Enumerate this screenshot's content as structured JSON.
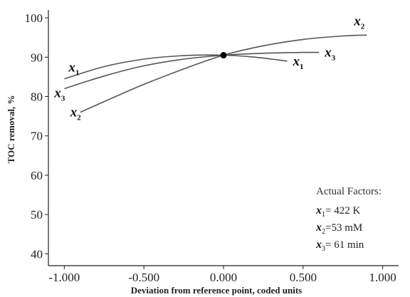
{
  "chart_data": {
    "type": "line",
    "xlabel": "Deviation from reference point, coded units",
    "ylabel": "TOC removal,  %",
    "xlim": [
      -1.1,
      1.1
    ],
    "ylim": [
      37,
      102
    ],
    "xticks": [
      -1.0,
      -0.5,
      0.0,
      0.5,
      1.0
    ],
    "xtick_labels": [
      "-1.000",
      "-0.500",
      "0.000",
      "0.500",
      "1.000"
    ],
    "yticks": [
      40,
      50,
      60,
      70,
      80,
      90,
      100
    ],
    "ytick_labels": [
      "40",
      "50",
      "60",
      "70",
      "80",
      "90",
      "100"
    ],
    "grid": false,
    "reference_point": {
      "x": 0.0,
      "y": 90.5
    },
    "series": [
      {
        "name": "x1",
        "var": "x",
        "sub": "1",
        "x": [
          -1.0,
          -0.75,
          -0.5,
          -0.25,
          0.0,
          0.2,
          0.4
        ],
        "y": [
          84.5,
          87.6,
          89.5,
          90.4,
          90.5,
          90.0,
          89.0
        ]
      },
      {
        "name": "x2",
        "var": "x",
        "sub": "2",
        "x": [
          -0.9,
          -0.7,
          -0.5,
          -0.25,
          0.0,
          0.25,
          0.5,
          0.75,
          0.9
        ],
        "y": [
          76.0,
          79.6,
          83.1,
          87.0,
          90.5,
          92.9,
          94.5,
          95.4,
          95.6
        ]
      },
      {
        "name": "x3",
        "var": "x",
        "sub": "3",
        "x": [
          -1.0,
          -0.75,
          -0.5,
          -0.25,
          0.0,
          0.25,
          0.5,
          0.6
        ],
        "y": [
          82.0,
          85.2,
          87.8,
          89.5,
          90.5,
          91.0,
          91.2,
          91.2
        ]
      }
    ],
    "legend_box": {
      "title": "Actual Factors:",
      "entries": [
        {
          "var": "x",
          "sub": "1",
          "value": "= 422 K"
        },
        {
          "var": "x",
          "sub": "2",
          "value": "=53 mM"
        },
        {
          "var": "x",
          "sub": "3",
          "value": "= 61 min"
        }
      ]
    }
  }
}
